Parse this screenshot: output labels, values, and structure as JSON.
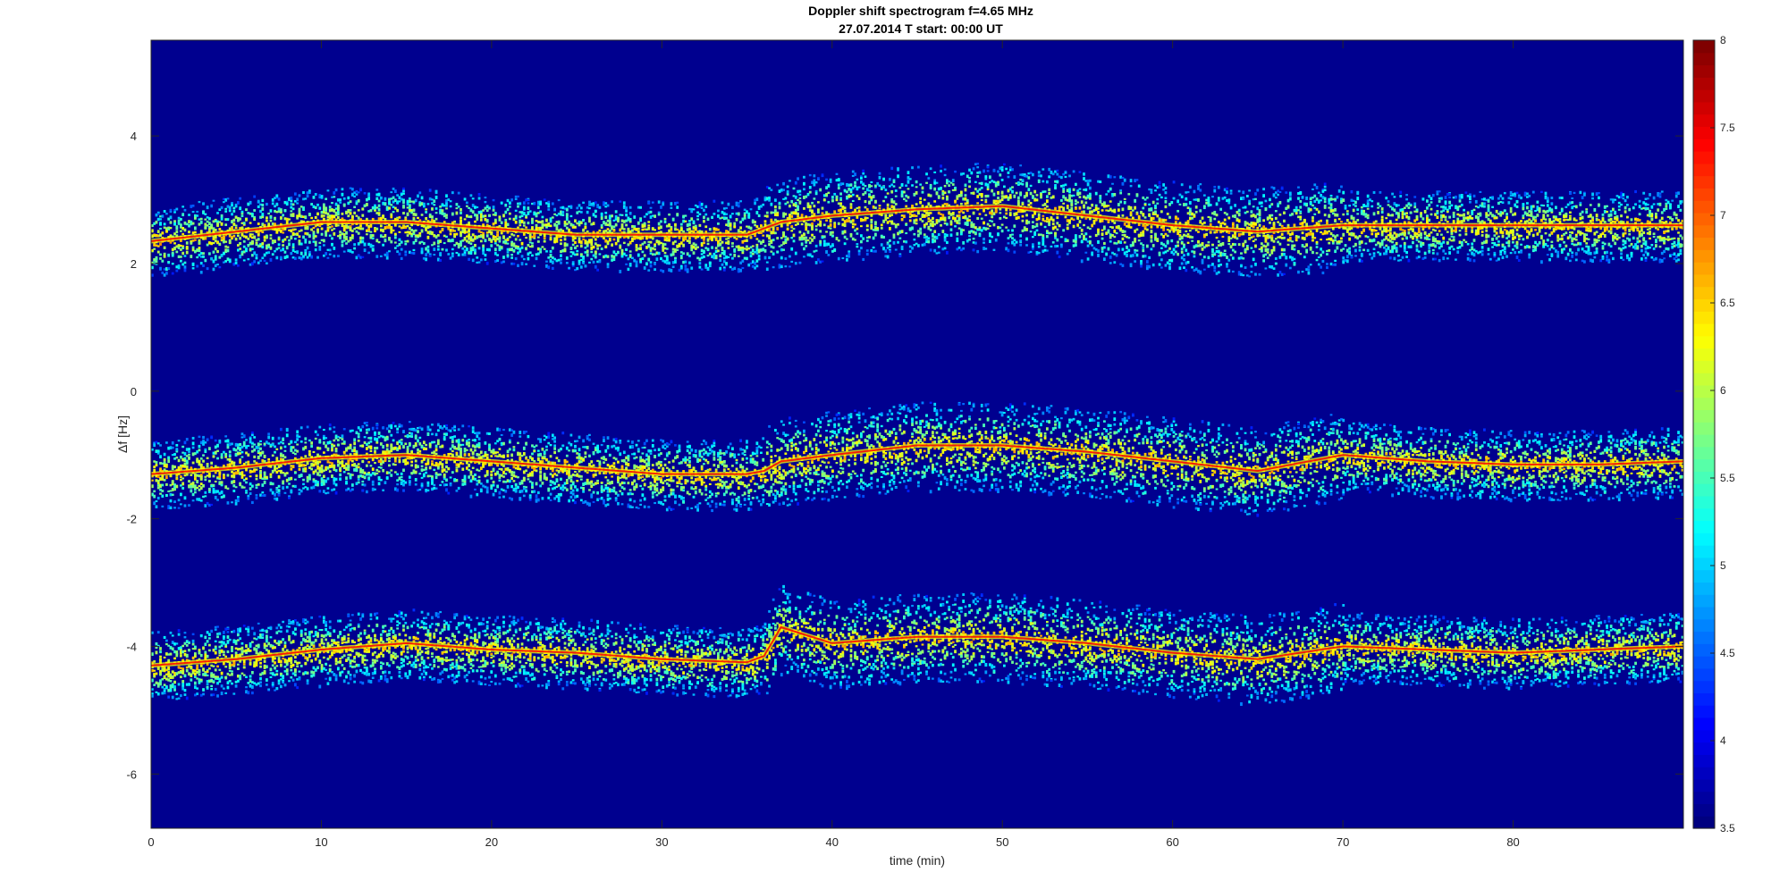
{
  "chart_data": {
    "type": "heatmap",
    "title": "Doppler shift spectrogram f=4.65 MHz",
    "subtitle": "27.07.2014   T start: 00:00 UT",
    "xlabel": "time (min)",
    "ylabel": "Δf [Hz]",
    "xlim": [
      0,
      90
    ],
    "ylim": [
      -6.85,
      5.5
    ],
    "x_ticks": [
      0,
      10,
      20,
      30,
      40,
      50,
      60,
      70,
      80
    ],
    "y_ticks": [
      4,
      2,
      0,
      -2,
      -4,
      -6
    ],
    "grid": false,
    "colormap": "jet",
    "background_color": "#00008f",
    "colorbar": {
      "range": [
        3.5,
        8
      ],
      "ticks": [
        8,
        7.5,
        7,
        6.5,
        6,
        5.5,
        5,
        4.5,
        4,
        3.5
      ],
      "tick_labels": [
        "8",
        "7.5",
        "7",
        "6.5",
        "6",
        "5.5",
        "5",
        "4.5",
        "4",
        "3.5"
      ]
    },
    "series": [
      {
        "time": [
          0,
          5,
          10,
          15,
          20,
          25,
          30,
          35,
          36,
          37,
          40,
          45,
          50,
          55,
          60,
          65,
          70,
          75,
          80,
          85,
          90
        ],
        "freq": [
          2.35,
          2.5,
          2.65,
          2.65,
          2.55,
          2.45,
          2.45,
          2.45,
          2.55,
          2.65,
          2.75,
          2.85,
          2.9,
          2.75,
          2.6,
          2.5,
          2.6,
          2.6,
          2.6,
          2.6,
          2.6
        ]
      },
      {
        "time": [
          0,
          5,
          10,
          15,
          20,
          25,
          30,
          35,
          36,
          37,
          40,
          45,
          50,
          55,
          60,
          65,
          70,
          75,
          80,
          85,
          90
        ],
        "freq": [
          -1.3,
          -1.2,
          -1.05,
          -1.0,
          -1.1,
          -1.2,
          -1.3,
          -1.3,
          -1.25,
          -1.1,
          -1.0,
          -0.85,
          -0.85,
          -0.95,
          -1.1,
          -1.25,
          -1.0,
          -1.1,
          -1.15,
          -1.15,
          -1.1
        ]
      },
      {
        "time": [
          0,
          5,
          10,
          15,
          20,
          25,
          30,
          35,
          36,
          37,
          40,
          45,
          50,
          55,
          60,
          65,
          70,
          75,
          80,
          85,
          90
        ],
        "freq": [
          -4.3,
          -4.2,
          -4.05,
          -3.95,
          -4.05,
          -4.1,
          -4.2,
          -4.25,
          -4.15,
          -3.7,
          -3.95,
          -3.85,
          -3.85,
          -3.95,
          -4.1,
          -4.2,
          -4.0,
          -4.05,
          -4.1,
          -4.05,
          -4.0
        ]
      }
    ]
  }
}
